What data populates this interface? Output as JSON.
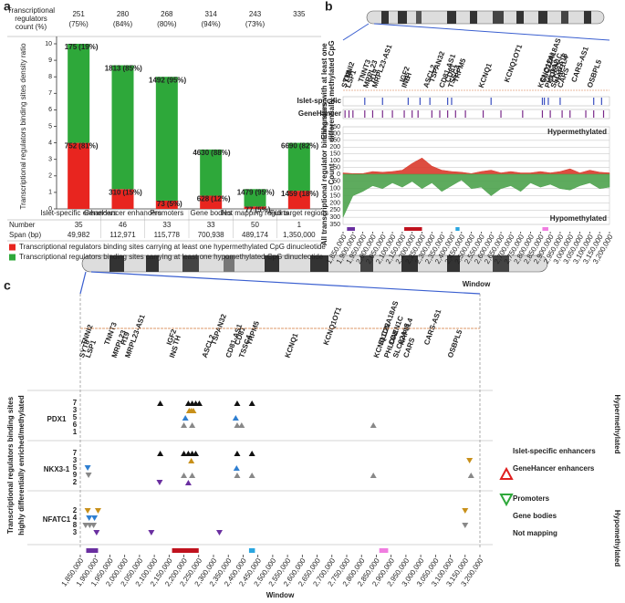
{
  "chart_data": [
    {
      "type": "stacked_bar",
      "panel": "a",
      "header_label": [
        "Transcriptional",
        "regulators",
        "count (%)"
      ],
      "header_counts": [
        251,
        280,
        268,
        314,
        243,
        335
      ],
      "header_percents": [
        "(75%)",
        "(84%)",
        "(80%)",
        "(94%)",
        "(73%)",
        null
      ],
      "ylabel": "Transcriptional regulators binding sites density ratio",
      "categories": [
        "Islet-specific enhancers",
        "GeneHancer enhancers",
        "Promoters",
        "Gene bodies",
        "Not mapping regions",
        "Full target regions"
      ],
      "series": [
        {
          "name": "Transcriptional regulators binding sites carrying at least one hypermethylated CpG dinucleotide",
          "color": "#e8251f",
          "values": [
            4.0,
            1.2,
            0.5,
            0.8,
            0.15,
            1.1
          ],
          "labels": [
            "752",
            "310",
            "73",
            "628",
            "77",
            "1459"
          ],
          "shares": [
            "(81%)",
            "(15%)",
            "(5%)",
            "(12%)",
            "(5%)",
            "(18%)"
          ]
        },
        {
          "name": "Transcriptional regulators binding sites carrying at least one hypomethylated CpG dinucleotide",
          "color": "#2ea83a",
          "values": [
            6.0,
            7.5,
            7.5,
            2.8,
            1.05,
            2.9
          ],
          "labels": [
            "175",
            "1813",
            "1492",
            "4630",
            "1479",
            "6690"
          ],
          "shares": [
            "(19%)",
            "(85%)",
            "(95%)",
            "(88%)",
            "(95%)",
            "(82%)"
          ]
        }
      ],
      "ylim": [
        0,
        10
      ],
      "yticks": [
        0,
        1,
        2,
        3,
        4,
        5,
        6,
        7,
        8,
        9,
        10
      ],
      "row_labels": [
        "Number",
        "Span (bp)"
      ],
      "numbers": [
        35,
        46,
        33,
        33,
        50,
        1
      ],
      "spans": [
        "49,982",
        "112,971",
        "115,778",
        "700,938",
        "489,174",
        "1,350,000"
      ]
    },
    {
      "type": "area",
      "panel": "b",
      "track_label": [
        "Enhancers with at least one",
        "differentially methylated CpG"
      ],
      "tracks": [
        {
          "name": "Islet-specific",
          "color": "#3a4fc0",
          "x": [
            1960000,
            2050000,
            2180000,
            2240000,
            2290000,
            2380000,
            2400000,
            2600000,
            2860000,
            2870000,
            2890000,
            2950000,
            3120000,
            3160000
          ]
        },
        {
          "name": "GeneHancer",
          "color": "#7a2a8a",
          "x": [
            1860000,
            1880000,
            1900000,
            1960000,
            2000000,
            2050000,
            2100000,
            2160000,
            2200000,
            2230000,
            2300000,
            2340000,
            2380000,
            2420000,
            2470000,
            2560000,
            2650000,
            2760000,
            2860000,
            2900000,
            2960000,
            3000000,
            3080000,
            3120000,
            3170000
          ]
        }
      ],
      "ylabel": "All transcriptional regulator binding sites",
      "count_label": "Count",
      "hyper_label": "Hypermethylated",
      "hypo_label": "Hypomethylated",
      "xlabel": "Window",
      "x": [
        1850000,
        1900000,
        1950000,
        2000000,
        2050000,
        2100000,
        2150000,
        2200000,
        2250000,
        2300000,
        2350000,
        2400000,
        2450000,
        2500000,
        2550000,
        2600000,
        2650000,
        2700000,
        2750000,
        2800000,
        2850000,
        2900000,
        2950000,
        3000000,
        3050000,
        3100000,
        3150000,
        3200000
      ],
      "series": [
        {
          "name": "Hypermethylated",
          "color": "#d93a2b",
          "values": [
            10,
            5,
            5,
            20,
            15,
            20,
            30,
            80,
            120,
            60,
            30,
            20,
            15,
            5,
            20,
            30,
            10,
            20,
            10,
            10,
            20,
            10,
            20,
            40,
            10,
            30,
            15,
            10
          ]
        },
        {
          "name": "Hypomethylated",
          "color": "#4ca24c",
          "axis": "y2",
          "values": [
            300,
            150,
            120,
            80,
            100,
            60,
            90,
            50,
            100,
            60,
            120,
            80,
            40,
            100,
            90,
            150,
            100,
            80,
            120,
            60,
            90,
            70,
            100,
            110,
            80,
            60,
            100,
            90
          ]
        }
      ],
      "regions": [
        {
          "start": 1870000,
          "end": 1910000,
          "color": "#6a2fa0"
        },
        {
          "start": 2160000,
          "end": 2250000,
          "color": "#c0121e"
        },
        {
          "start": 2420000,
          "end": 2440000,
          "color": "#2aa6e0"
        },
        {
          "start": 2860000,
          "end": 2890000,
          "color": "#f07de0"
        }
      ],
      "ylim": [
        0,
        350
      ],
      "yticks": [
        0,
        50,
        100,
        150,
        200,
        250,
        300,
        350
      ],
      "y2lim": [
        0,
        350
      ],
      "y2ticks": [
        50,
        100,
        150,
        200,
        250,
        300,
        350
      ],
      "xlim": [
        1850000,
        3200000
      ],
      "xticks": [
        {
          "value": 1850000,
          "label": "1,850,000"
        },
        {
          "value": 1900000,
          "label": "1,900,000"
        },
        {
          "value": 1950000,
          "label": "1,950,000"
        },
        {
          "value": 2000000,
          "label": "2,000,000"
        },
        {
          "value": 2050000,
          "label": "2,050,000"
        },
        {
          "value": 2100000,
          "label": "2,100,000"
        },
        {
          "value": 2150000,
          "label": "2,150,000"
        },
        {
          "value": 2200000,
          "label": "2,200,000"
        },
        {
          "value": 2250000,
          "label": "2,250,000"
        },
        {
          "value": 2300000,
          "label": "2,300,000"
        },
        {
          "value": 2350000,
          "label": "2,350,000"
        },
        {
          "value": 2400000,
          "label": "2,400,000"
        },
        {
          "value": 2450000,
          "label": "2,450,000"
        },
        {
          "value": 2500000,
          "label": "2,500,000"
        },
        {
          "value": 2550000,
          "label": "2,550,000"
        },
        {
          "value": 2600000,
          "label": "2,600,000"
        },
        {
          "value": 2650000,
          "label": "2,650,000"
        },
        {
          "value": 2700000,
          "label": "2,700,000"
        },
        {
          "value": 2750000,
          "label": "2,750,000"
        },
        {
          "value": 2800000,
          "label": "2,800,000"
        },
        {
          "value": 2850000,
          "label": "2,850,000"
        },
        {
          "value": 2900000,
          "label": "2,900,000"
        },
        {
          "value": 2950000,
          "label": "2,950,000"
        },
        {
          "value": 3000000,
          "label": "3,000,000"
        },
        {
          "value": 3050000,
          "label": "3,050,000"
        },
        {
          "value": 3100000,
          "label": "3,100,000"
        },
        {
          "value": 3150000,
          "label": "3,150,000"
        },
        {
          "value": 3200000,
          "label": "3,200,000"
        }
      ]
    },
    {
      "type": "triangle_scatter",
      "panel": "c",
      "ylabel": [
        "Transcriptional regulators binding sites",
        "highly differentially enriched/methylated"
      ],
      "hyper_label": "Hypermethylated",
      "hypo_label": "Hypomethylated",
      "xlabel": "Window",
      "series": [
        {
          "name": "Islet-specific enhancers",
          "color": "#111111"
        },
        {
          "name": "GeneHancer enhancers",
          "color": "#c8901a"
        },
        {
          "name": "Promoters",
          "color": "#2f7fd1"
        },
        {
          "name": "Gene bodies",
          "color": "#888888"
        },
        {
          "name": "Not mapping",
          "color": "#6a2fa0"
        }
      ],
      "groups": [
        {
          "name": "PDX1",
          "counts": [
            7,
            3,
            5,
            6,
            1
          ],
          "hyper": [
            [
              2120000,
              2215000,
              2228000,
              2240000,
              2252000,
              2380000,
              2430000
            ],
            [
              2218000,
              2225000,
              2232000
            ],
            [
              2205000,
              2375000
            ],
            [
              2200000,
              2228000,
              2380000,
              2395000,
              2840000
            ],
            []
          ],
          "hypo": [
            [],
            [],
            [],
            [],
            []
          ]
        },
        {
          "name": "NKX3-1",
          "counts": [
            7,
            3,
            5,
            9,
            2
          ],
          "hyper": [
            [
              2120000,
              2200000,
              2215000,
              2228000,
              2240000,
              2380000,
              2430000
            ],
            [
              2225000
            ],
            [
              2378000
            ],
            [
              2200000,
              2228000,
              2380000,
              2430000,
              2840000,
              3170000
            ],
            [
              2215000
            ]
          ],
          "hypo": [
            [],
            [
              3165000
            ],
            [
              1875000
            ],
            [
              1878000
            ],
            [
              2118000
            ]
          ]
        },
        {
          "name": "NFATC1",
          "counts": [
            null,
            2,
            4,
            8,
            3
          ],
          "hyper": [
            [],
            [],
            [],
            [],
            []
          ],
          "hypo": [
            [],
            [
              1875000,
              1910000,
              3150000
            ],
            [
              1880000,
              1898000
            ],
            [
              1868000,
              1882000,
              1895000,
              3150000
            ],
            [
              1905000,
              2090000,
              2320000
            ]
          ]
        }
      ],
      "regions": [
        {
          "start": 1870000,
          "end": 1910000,
          "color": "#6a2fa0"
        },
        {
          "start": 2160000,
          "end": 2250000,
          "color": "#c0121e"
        },
        {
          "start": 2420000,
          "end": 2440000,
          "color": "#2aa6e0"
        },
        {
          "start": 2860000,
          "end": 2890000,
          "color": "#f07de0"
        }
      ],
      "xlim": [
        1850000,
        3200000
      ],
      "xticks": [
        {
          "value": 1850000,
          "label": "1,850,000"
        },
        {
          "value": 1900000,
          "label": "1,900,000"
        },
        {
          "value": 1950000,
          "label": "1,950,000"
        },
        {
          "value": 2000000,
          "label": "2,000,000"
        },
        {
          "value": 2050000,
          "label": "2,050,000"
        },
        {
          "value": 2100000,
          "label": "2,100,000"
        },
        {
          "value": 2150000,
          "label": "2,150,000"
        },
        {
          "value": 2200000,
          "label": "2,200,000"
        },
        {
          "value": 2250000,
          "label": "2,250,000"
        },
        {
          "value": 2300000,
          "label": "2,300,000"
        },
        {
          "value": 2350000,
          "label": "2,350,000"
        },
        {
          "value": 2400000,
          "label": "2,400,000"
        },
        {
          "value": 2450000,
          "label": "2,450,000"
        },
        {
          "value": 2500000,
          "label": "2,500,000"
        },
        {
          "value": 2550000,
          "label": "2,550,000"
        },
        {
          "value": 2600000,
          "label": "2,600,000"
        },
        {
          "value": 2650000,
          "label": "2,650,000"
        },
        {
          "value": 2700000,
          "label": "2,700,000"
        },
        {
          "value": 2750000,
          "label": "2,750,000"
        },
        {
          "value": 2800000,
          "label": "2,800,000"
        },
        {
          "value": 2850000,
          "label": "2,850,000"
        },
        {
          "value": 2900000,
          "label": "2,900,000"
        },
        {
          "value": 2950000,
          "label": "2,950,000"
        },
        {
          "value": 3000000,
          "label": "3,000,000"
        },
        {
          "value": 3050000,
          "label": "3,050,000"
        },
        {
          "value": 3100000,
          "label": "3,100,000"
        },
        {
          "value": 3150000,
          "label": "3,150,000"
        },
        {
          "value": 3200000,
          "label": "3,200,000"
        }
      ]
    }
  ],
  "genes": [
    {
      "name": "SYT8",
      "x": 1855000,
      "color": "#111111"
    },
    {
      "name": "TNNI2",
      "x": 1862000,
      "color": "#111111"
    },
    {
      "name": "LSP1",
      "x": 1876000,
      "color": "#d2773a"
    },
    {
      "name": "TNNT3",
      "x": 1940000,
      "color": "#111111"
    },
    {
      "name": "MRPL23",
      "x": 1965000,
      "color": "#d2773a"
    },
    {
      "name": "H19",
      "x": 1995000,
      "color": "#d2773a"
    },
    {
      "name": "MRPL23-AS1",
      "x": 2010000,
      "color": "#d2773a"
    },
    {
      "name": "IGF2",
      "x": 2150000,
      "color": "#d2773a"
    },
    {
      "name": "INS",
      "x": 2160000,
      "color": "#d2773a"
    },
    {
      "name": "TH",
      "x": 2172000,
      "color": "#d2773a"
    },
    {
      "name": "ASCL2",
      "x": 2270000,
      "color": "#d2773a"
    },
    {
      "name": "TSPAN32",
      "x": 2300000,
      "color": "#111111"
    },
    {
      "name": "CD81-AS1",
      "x": 2350000,
      "color": "#111111"
    },
    {
      "name": "CD81",
      "x": 2380000,
      "color": "#d2773a"
    },
    {
      "name": "TSSC4",
      "x": 2395000,
      "color": "#d2773a"
    },
    {
      "name": "TRPM5",
      "x": 2420000,
      "color": "#d2773a"
    },
    {
      "name": "KCNQ1",
      "x": 2550000,
      "color": "#d2773a"
    },
    {
      "name": "KCNQ1OT1",
      "x": 2680000,
      "color": "#d2773a"
    },
    {
      "name": "KCNQ1DN",
      "x": 2850000,
      "color": "#111111"
    },
    {
      "name": "SLC22A18AS",
      "x": 2865000,
      "color": "#111111"
    },
    {
      "name": "PHLDA2",
      "x": 2885000,
      "color": "#111111"
    },
    {
      "name": "CDKN1C",
      "x": 2900000,
      "color": "#d2773a"
    },
    {
      "name": "SLC22A18",
      "x": 2915000,
      "color": "#d2773a"
    },
    {
      "name": "NAP1L4",
      "x": 2935000,
      "color": "#d2773a"
    },
    {
      "name": "CARS",
      "x": 2950000,
      "color": "#d2773a"
    },
    {
      "name": "CARS-AS1",
      "x": 3020000,
      "color": "#d2773a"
    },
    {
      "name": "OSBPL5",
      "x": 3100000,
      "color": "#d2773a"
    }
  ]
}
